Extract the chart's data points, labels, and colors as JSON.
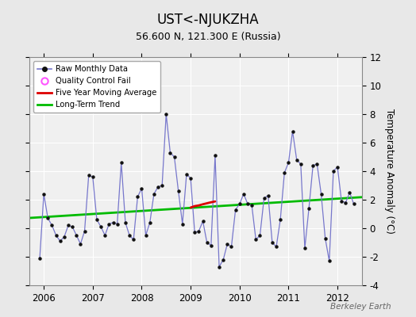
{
  "title": "UST<-NJUKZHA",
  "subtitle": "56.600 N, 121.300 E (Russia)",
  "ylabel": "Temperature Anomaly (°C)",
  "watermark": "Berkeley Earth",
  "ylim": [
    -4,
    12
  ],
  "xlim_start": 2005.7,
  "xlim_end": 2012.5,
  "xticks": [
    2006,
    2007,
    2008,
    2009,
    2010,
    2011,
    2012
  ],
  "yticks": [
    -4,
    -2,
    0,
    2,
    4,
    6,
    8,
    10,
    12
  ],
  "background_color": "#e8e8e8",
  "raw_data": [
    2005.917,
    -2.1,
    2006.0,
    2.4,
    2006.083,
    0.7,
    2006.167,
    0.2,
    2006.25,
    -0.5,
    2006.333,
    -0.9,
    2006.417,
    -0.6,
    2006.5,
    0.2,
    2006.583,
    0.1,
    2006.667,
    -0.5,
    2006.75,
    -1.1,
    2006.833,
    -0.2,
    2006.917,
    3.7,
    2007.0,
    3.6,
    2007.083,
    0.6,
    2007.167,
    0.1,
    2007.25,
    -0.5,
    2007.333,
    0.3,
    2007.417,
    0.4,
    2007.5,
    0.3,
    2007.583,
    4.6,
    2007.667,
    0.4,
    2007.75,
    -0.5,
    2007.833,
    -0.8,
    2007.917,
    2.2,
    2008.0,
    2.8,
    2008.083,
    -0.5,
    2008.167,
    0.4,
    2008.25,
    2.4,
    2008.333,
    2.9,
    2008.417,
    3.0,
    2008.5,
    8.0,
    2008.583,
    5.3,
    2008.667,
    5.0,
    2008.75,
    2.6,
    2008.833,
    0.3,
    2008.917,
    3.8,
    2009.0,
    3.5,
    2009.083,
    -0.3,
    2009.167,
    -0.2,
    2009.25,
    0.5,
    2009.333,
    -1.0,
    2009.417,
    -1.2,
    2009.5,
    5.1,
    2009.583,
    -2.7,
    2009.667,
    -2.2,
    2009.75,
    -1.1,
    2009.833,
    -1.3,
    2009.917,
    1.3,
    2010.0,
    1.7,
    2010.083,
    2.4,
    2010.167,
    1.7,
    2010.25,
    1.6,
    2010.333,
    -0.8,
    2010.417,
    -0.5,
    2010.5,
    2.1,
    2010.583,
    2.3,
    2010.667,
    -1.0,
    2010.75,
    -1.3,
    2010.833,
    0.6,
    2010.917,
    3.9,
    2011.0,
    4.6,
    2011.083,
    6.8,
    2011.167,
    4.8,
    2011.25,
    4.5,
    2011.333,
    -1.4,
    2011.417,
    1.4,
    2011.5,
    4.4,
    2011.583,
    4.5,
    2011.667,
    2.4,
    2011.75,
    -0.7,
    2011.833,
    -2.3,
    2011.917,
    4.0,
    2012.0,
    4.3,
    2012.083,
    1.9,
    2012.167,
    1.8,
    2012.25,
    2.5,
    2012.333,
    1.7
  ],
  "moving_avg_x": [
    2009.0,
    2009.083,
    2009.167,
    2009.25,
    2009.333,
    2009.417,
    2009.5
  ],
  "moving_avg_y": [
    1.45,
    1.55,
    1.6,
    1.68,
    1.75,
    1.82,
    1.88
  ],
  "trend_x": [
    2005.7,
    2012.5
  ],
  "trend_y": [
    0.72,
    2.18
  ],
  "line_color": "#7777cc",
  "marker_color": "#111111",
  "moving_avg_color": "#dd0000",
  "trend_color": "#00bb00",
  "qc_fail_color": "#ff55ff",
  "plot_facecolor": "#f0f0f0",
  "title_fontsize": 12,
  "subtitle_fontsize": 9,
  "tick_fontsize": 8.5,
  "ylabel_fontsize": 8.5
}
